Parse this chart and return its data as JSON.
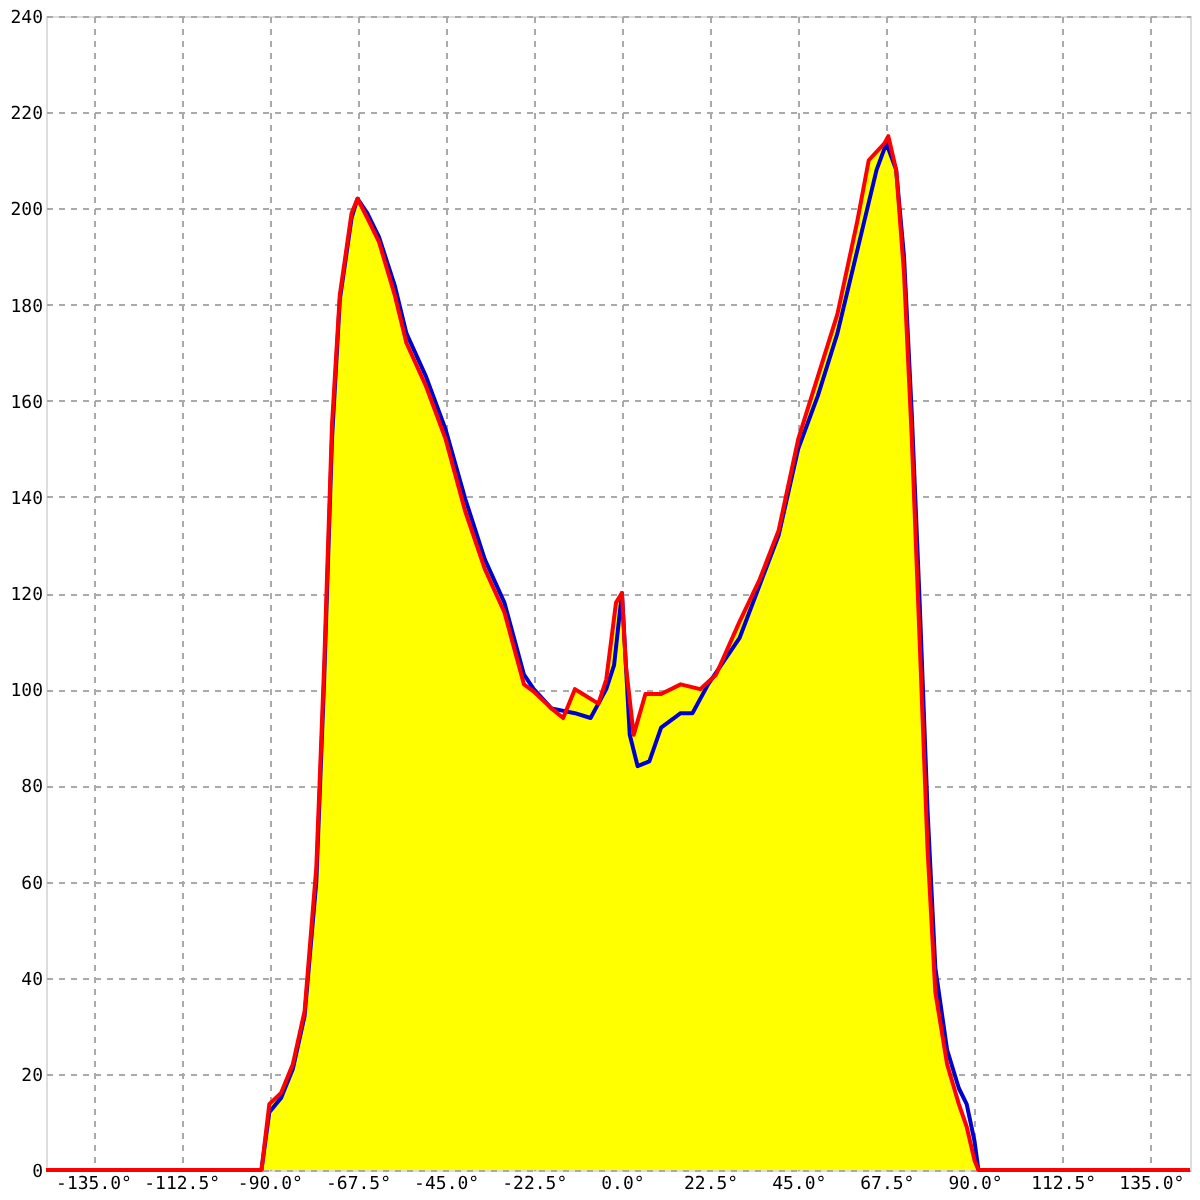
{
  "chart_data": {
    "type": "line",
    "xlim": [
      -147,
      145
    ],
    "ylim": [
      0,
      240
    ],
    "xticks": [
      {
        "value": -135,
        "label": "-135.0°"
      },
      {
        "value": -112.5,
        "label": "-112.5°"
      },
      {
        "value": -90,
        "label": "-90.0°"
      },
      {
        "value": -67.5,
        "label": "-67.5°"
      },
      {
        "value": -45,
        "label": "-45.0°"
      },
      {
        "value": -22.5,
        "label": "-22.5°"
      },
      {
        "value": 0,
        "label": "0.0°"
      },
      {
        "value": 22.5,
        "label": "22.5°"
      },
      {
        "value": 45,
        "label": "45.0°"
      },
      {
        "value": 67.5,
        "label": "67.5°"
      },
      {
        "value": 90,
        "label": "90.0°"
      },
      {
        "value": 112.5,
        "label": "112.5°"
      },
      {
        "value": 135,
        "label": "135.0°"
      }
    ],
    "yticks": [
      0,
      20,
      40,
      60,
      80,
      100,
      120,
      140,
      160,
      180,
      200,
      220,
      240
    ],
    "grid": true,
    "series": [
      {
        "type": "area",
        "color": "#ffff00",
        "x": [
          -92,
          -90,
          -87,
          -84,
          -81,
          -78,
          -76,
          -74,
          -72,
          -69,
          -67.5,
          -65,
          -62,
          -58,
          -55,
          -50,
          -45,
          -40,
          -35,
          -30,
          -25,
          -22.5,
          -18,
          -15,
          -12,
          -10,
          -6,
          -4,
          -1.5,
          0,
          1,
          3,
          6,
          10,
          15,
          20,
          24,
          30,
          35,
          40,
          45,
          50,
          55,
          60,
          63,
          67,
          68,
          70,
          72,
          74,
          76,
          78,
          80,
          83,
          86,
          88,
          90,
          91
        ],
        "values": [
          0,
          13.7,
          16,
          22,
          33,
          63,
          105,
          155,
          182,
          199,
          202,
          198,
          193,
          182,
          172,
          163,
          152,
          137,
          125,
          116,
          101,
          99.5,
          96,
          94,
          100,
          99,
          97,
          102,
          118,
          120,
          105,
          90.5,
          99,
          99,
          101,
          100,
          103,
          114,
          122.5,
          133,
          152,
          165,
          178,
          197,
          210,
          213.5,
          215,
          208,
          186.6,
          152,
          110,
          67,
          37,
          22,
          13.7,
          9,
          2,
          0
        ]
      },
      {
        "color": "#0000cc",
        "x": [
          -92,
          -90,
          -87,
          -84,
          -81,
          -78,
          -76,
          -74,
          -72,
          -69,
          -67.5,
          -65,
          -62,
          -58,
          -55,
          -50,
          -45,
          -40,
          -35,
          -30,
          -25,
          -22.5,
          -18,
          -12,
          -8,
          -4,
          -2,
          0,
          2,
          4,
          7,
          10,
          15,
          18,
          22,
          30,
          40,
          45,
          50,
          55,
          60,
          65,
          67.5,
          70,
          72,
          74,
          76,
          78,
          80,
          83,
          86,
          88,
          90,
          91
        ],
        "values": [
          0,
          12,
          15,
          21,
          32,
          60,
          102,
          152,
          181,
          198,
          202,
          199,
          194,
          184,
          174,
          165,
          154,
          139.6,
          127,
          118,
          103,
          100,
          96,
          95,
          94,
          100,
          105,
          120,
          90.5,
          84,
          85,
          92,
          95,
          95,
          101,
          110.6,
          132,
          150,
          161,
          174,
          191,
          208,
          213.5,
          208,
          190,
          157,
          118,
          75,
          42,
          25,
          17,
          13.7,
          6,
          0
        ]
      },
      {
        "color": "#ff0000",
        "x": [
          -147,
          -92,
          -90,
          -87,
          -84,
          -81,
          -78,
          -76,
          -74,
          -72,
          -69,
          -67.5,
          -65,
          -62,
          -58,
          -55,
          -50,
          -45,
          -40,
          -35,
          -30,
          -25,
          -22.5,
          -18,
          -15,
          -12,
          -10,
          -6,
          -4,
          -1.5,
          0,
          1,
          3,
          6,
          10,
          15,
          20,
          24,
          30,
          35,
          40,
          45,
          50,
          55,
          60,
          63,
          67,
          68,
          70,
          72,
          74,
          76,
          78,
          80,
          83,
          86,
          88,
          90,
          91,
          145
        ],
        "values": [
          0,
          0,
          13.7,
          16,
          22,
          33,
          63,
          105,
          155,
          182,
          199,
          202,
          198,
          193,
          182,
          172,
          163,
          152,
          137,
          125,
          116,
          101,
          99.5,
          96,
          94,
          100,
          99,
          97,
          102,
          118,
          120,
          105,
          90.5,
          99,
          99,
          101,
          100,
          103,
          114,
          122.5,
          133,
          152,
          165,
          178,
          197,
          210,
          213.5,
          215,
          208,
          186.6,
          152,
          110,
          67,
          37,
          22,
          13.7,
          9,
          2,
          0,
          0
        ]
      }
    ]
  }
}
